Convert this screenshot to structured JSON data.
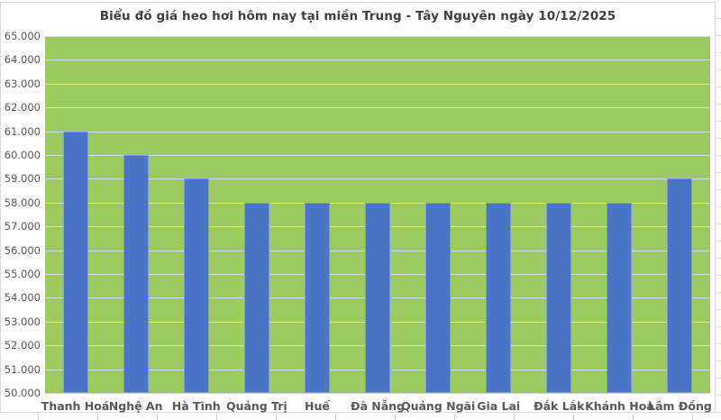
{
  "chart_data": {
    "type": "bar",
    "title": "Biểu đồ giá heo hơi hôm nay tại miền Trung - Tây Nguyên ngày 10/12/2025",
    "categories": [
      "Thanh Hoá",
      "Nghệ An",
      "Hà Tĩnh",
      "Quảng Trị",
      "Huế",
      "Đà Nẵng",
      "Quảng Ngãi",
      "Gia Lai",
      "Đắk Lắk",
      "Khánh Hoà",
      "Lâm Đồng"
    ],
    "values": [
      61000,
      60000,
      59000,
      58000,
      58000,
      58000,
      58000,
      58000,
      58000,
      58000,
      59000
    ],
    "xlabel": "",
    "ylabel": "",
    "ylim": [
      50000,
      65000
    ],
    "y_step": 1000,
    "y_tick_labels": [
      "65.000",
      "64.000",
      "63.000",
      "62.000",
      "61.000",
      "60.000",
      "59.000",
      "58.000",
      "57.000",
      "56.000",
      "55.000",
      "54.000",
      "53.000",
      "52.000",
      "51.000",
      "50.000"
    ],
    "grid": true,
    "legend_position": "none",
    "colors": {
      "bar": "#4a75c4",
      "plot_background": "#9cca60",
      "gridline": "#d9d9d9",
      "title_text": "#404040",
      "axis_text": "#595959",
      "chart_border": "#d9d9d9",
      "page_background": "#ffffff"
    }
  }
}
